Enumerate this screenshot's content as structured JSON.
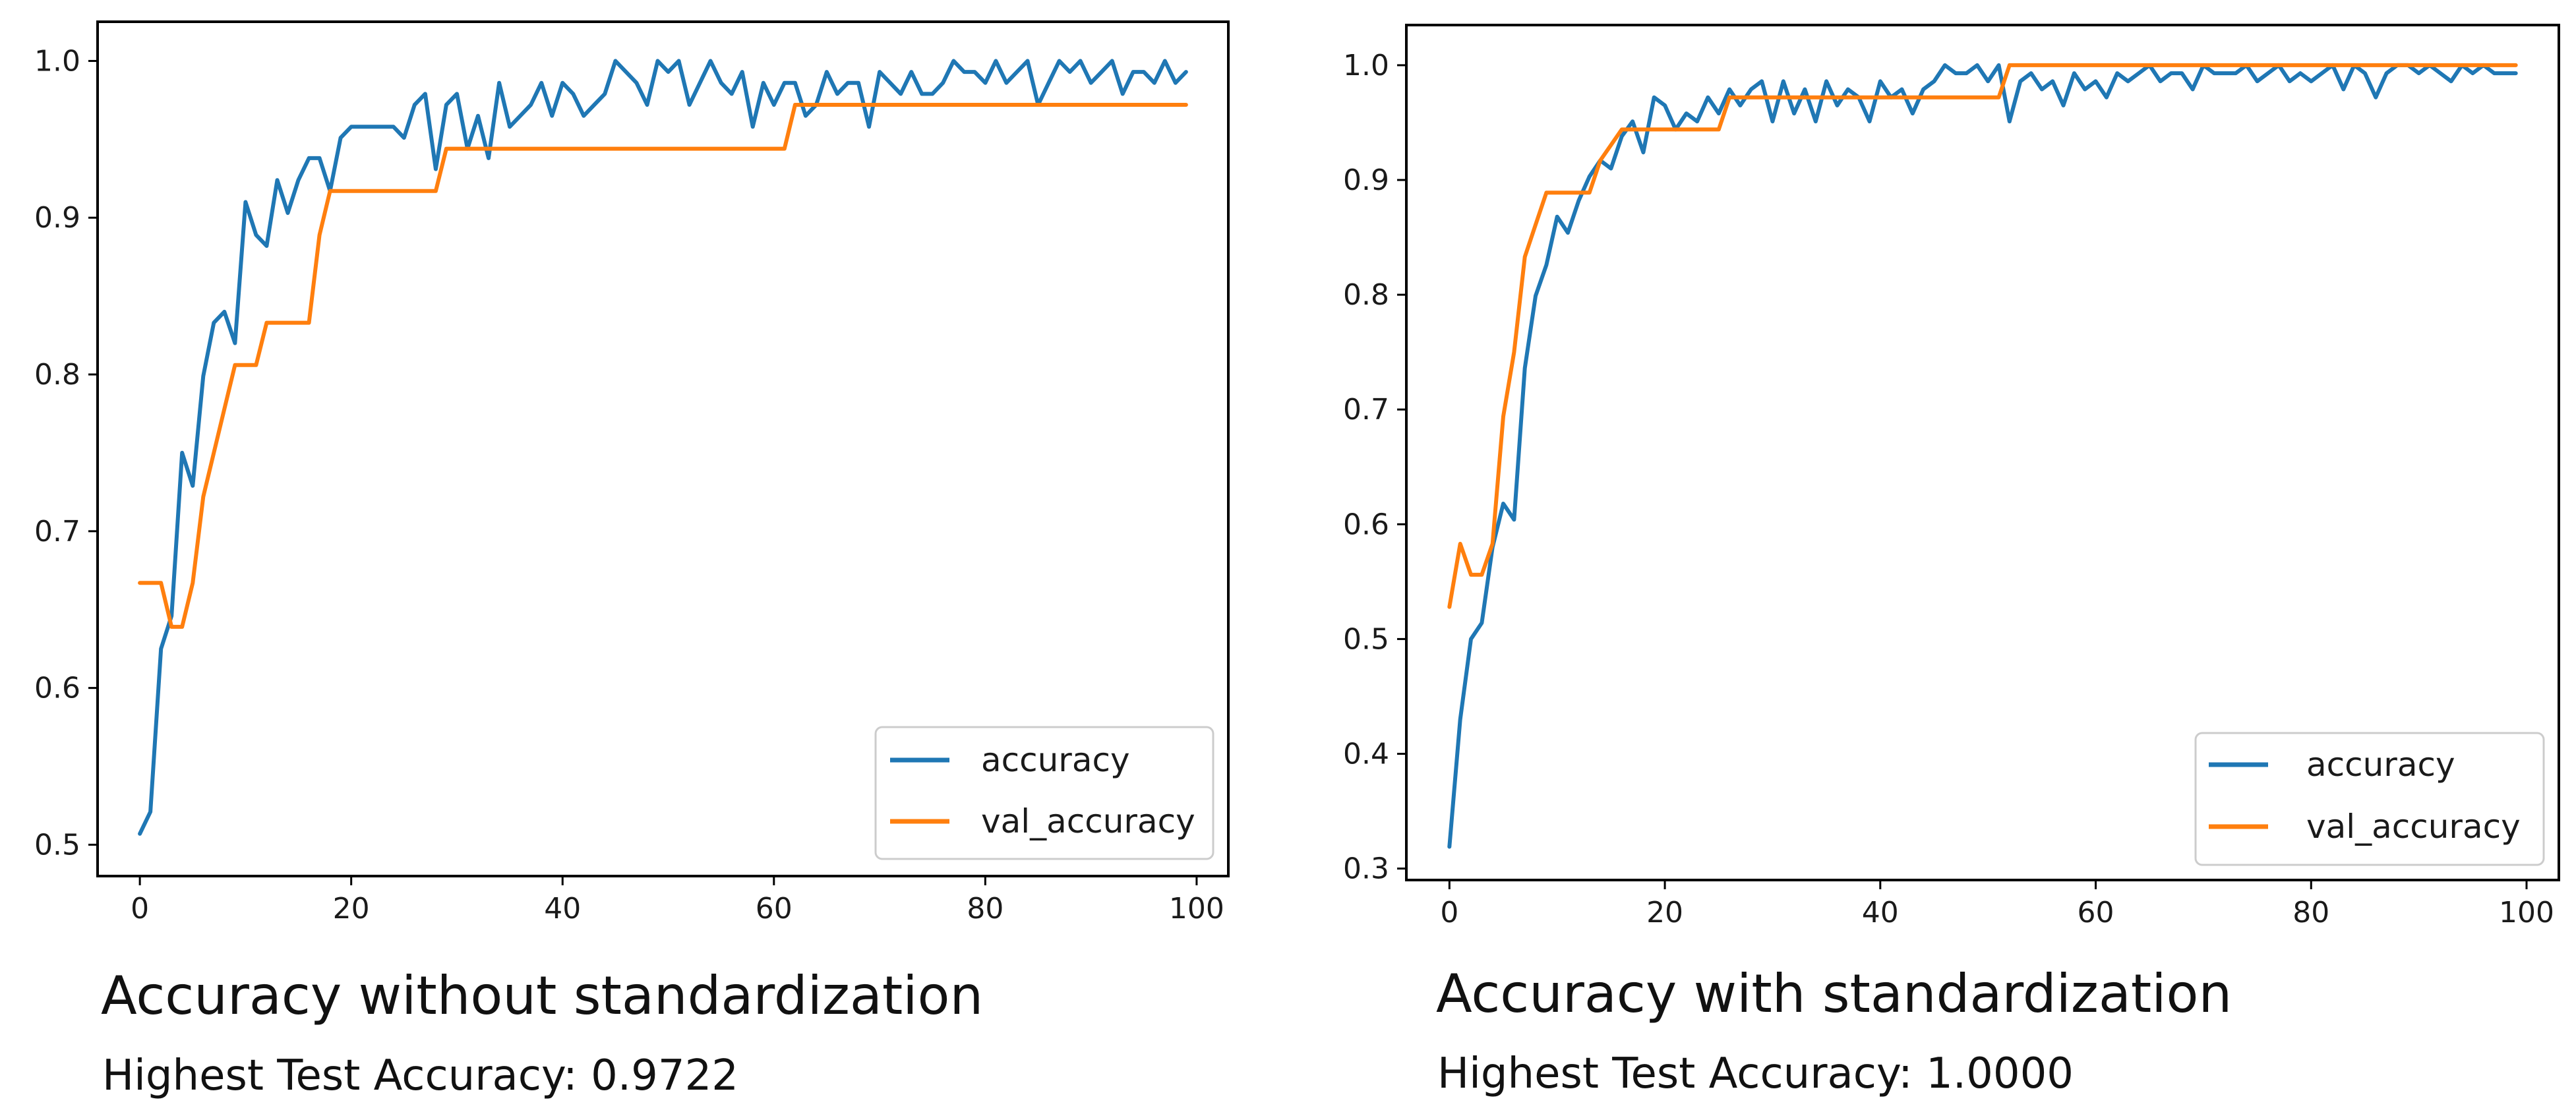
{
  "colors": {
    "accuracy": "#1f77b4",
    "val_accuracy": "#ff7f0e",
    "axes": "#000000",
    "legend_border": "#cccccc"
  },
  "panels": [
    {
      "caption": "Accuracy without standardization",
      "subcaption": "Highest Test Accuracy: 0.9722"
    },
    {
      "caption": "Accuracy with standardization",
      "subcaption": "Highest Test Accuracy: 1.0000"
    }
  ],
  "chart_data": [
    {
      "type": "line",
      "title": "Accuracy without standardization",
      "xlabel": "",
      "ylabel": "",
      "xlim": [
        -4,
        103
      ],
      "ylim": [
        0.48,
        1.025
      ],
      "xticks": [
        0,
        20,
        40,
        60,
        80,
        100
      ],
      "yticks": [
        0.5,
        0.6,
        0.7,
        0.8,
        0.9,
        1.0
      ],
      "ytick_labels": [
        "0.5",
        "0.6",
        "0.7",
        "0.8",
        "0.9",
        "1.0"
      ],
      "grid": false,
      "legend": "lower-right",
      "series": [
        {
          "name": "accuracy",
          "points": [
            [
              0,
              0.507
            ],
            [
              1,
              0.521
            ],
            [
              2,
              0.625
            ],
            [
              3,
              0.646
            ],
            [
              4,
              0.75
            ],
            [
              5,
              0.729
            ],
            [
              6,
              0.799
            ],
            [
              7,
              0.833
            ],
            [
              8,
              0.84
            ],
            [
              9,
              0.82
            ],
            [
              10,
              0.91
            ],
            [
              11,
              0.889
            ],
            [
              12,
              0.882
            ],
            [
              13,
              0.924
            ],
            [
              14,
              0.903
            ],
            [
              15,
              0.924
            ],
            [
              16,
              0.938
            ],
            [
              17,
              0.938
            ],
            [
              18,
              0.917
            ],
            [
              19,
              0.951
            ],
            [
              20,
              0.958
            ],
            [
              22,
              0.958
            ],
            [
              24,
              0.958
            ],
            [
              25,
              0.951
            ],
            [
              26,
              0.972
            ],
            [
              27,
              0.979
            ],
            [
              28,
              0.931
            ],
            [
              29,
              0.972
            ],
            [
              30,
              0.979
            ],
            [
              31,
              0.944
            ],
            [
              32,
              0.965
            ],
            [
              33,
              0.938
            ],
            [
              34,
              0.986
            ],
            [
              35,
              0.958
            ],
            [
              36,
              0.965
            ],
            [
              37,
              0.972
            ],
            [
              38,
              0.986
            ],
            [
              39,
              0.965
            ],
            [
              40,
              0.986
            ],
            [
              41,
              0.979
            ],
            [
              42,
              0.965
            ],
            [
              43,
              0.972
            ],
            [
              44,
              0.979
            ],
            [
              45,
              1.0
            ],
            [
              46,
              0.993
            ],
            [
              47,
              0.986
            ],
            [
              48,
              0.972
            ],
            [
              49,
              1.0
            ],
            [
              50,
              0.993
            ],
            [
              51,
              1.0
            ],
            [
              52,
              0.972
            ],
            [
              53,
              0.986
            ],
            [
              54,
              1.0
            ],
            [
              55,
              0.986
            ],
            [
              56,
              0.979
            ],
            [
              57,
              0.993
            ],
            [
              58,
              0.958
            ],
            [
              59,
              0.986
            ],
            [
              60,
              0.972
            ],
            [
              61,
              0.986
            ],
            [
              62,
              0.986
            ],
            [
              63,
              0.965
            ],
            [
              64,
              0.972
            ],
            [
              65,
              0.993
            ],
            [
              66,
              0.979
            ],
            [
              67,
              0.986
            ],
            [
              68,
              0.986
            ],
            [
              69,
              0.958
            ],
            [
              70,
              0.993
            ],
            [
              71,
              0.986
            ],
            [
              72,
              0.979
            ],
            [
              73,
              0.993
            ],
            [
              74,
              0.979
            ],
            [
              75,
              0.979
            ],
            [
              76,
              0.986
            ],
            [
              77,
              1.0
            ],
            [
              78,
              0.993
            ],
            [
              79,
              0.993
            ],
            [
              80,
              0.986
            ],
            [
              81,
              1.0
            ],
            [
              82,
              0.986
            ],
            [
              83,
              0.993
            ],
            [
              84,
              1.0
            ],
            [
              85,
              0.972
            ],
            [
              86,
              0.986
            ],
            [
              87,
              1.0
            ],
            [
              88,
              0.993
            ],
            [
              89,
              1.0
            ],
            [
              90,
              0.986
            ],
            [
              91,
              0.993
            ],
            [
              92,
              1.0
            ],
            [
              93,
              0.979
            ],
            [
              94,
              0.993
            ],
            [
              95,
              0.993
            ],
            [
              96,
              0.986
            ],
            [
              97,
              1.0
            ],
            [
              98,
              0.986
            ],
            [
              99,
              0.993
            ]
          ]
        },
        {
          "name": "val_accuracy",
          "points": [
            [
              0,
              0.667
            ],
            [
              2,
              0.667
            ],
            [
              3,
              0.639
            ],
            [
              4,
              0.639
            ],
            [
              5,
              0.667
            ],
            [
              6,
              0.722
            ],
            [
              7,
              0.75
            ],
            [
              8,
              0.778
            ],
            [
              9,
              0.806
            ],
            [
              11,
              0.806
            ],
            [
              12,
              0.833
            ],
            [
              16,
              0.833
            ],
            [
              17,
              0.889
            ],
            [
              18,
              0.917
            ],
            [
              28,
              0.917
            ],
            [
              29,
              0.944
            ],
            [
              61,
              0.944
            ],
            [
              62,
              0.972
            ],
            [
              99,
              0.972
            ]
          ]
        }
      ]
    },
    {
      "type": "line",
      "title": "Accuracy with standardization",
      "xlabel": "",
      "ylabel": "",
      "xlim": [
        -4,
        103
      ],
      "ylim": [
        0.29,
        1.035
      ],
      "xticks": [
        0,
        20,
        40,
        60,
        80,
        100
      ],
      "yticks": [
        0.3,
        0.4,
        0.5,
        0.6,
        0.7,
        0.8,
        0.9,
        1.0
      ],
      "ytick_labels": [
        "0.3",
        "0.4",
        "0.5",
        "0.6",
        "0.7",
        "0.8",
        "0.9",
        "1.0"
      ],
      "grid": false,
      "legend": "lower-right",
      "series": [
        {
          "name": "accuracy",
          "points": [
            [
              0,
              0.319
            ],
            [
              1,
              0.43
            ],
            [
              2,
              0.5
            ],
            [
              3,
              0.514
            ],
            [
              4,
              0.58
            ],
            [
              5,
              0.618
            ],
            [
              6,
              0.604
            ],
            [
              7,
              0.736
            ],
            [
              8,
              0.799
            ],
            [
              9,
              0.826
            ],
            [
              10,
              0.868
            ],
            [
              11,
              0.854
            ],
            [
              12,
              0.882
            ],
            [
              13,
              0.903
            ],
            [
              14,
              0.917
            ],
            [
              15,
              0.91
            ],
            [
              16,
              0.938
            ],
            [
              17,
              0.951
            ],
            [
              18,
              0.924
            ],
            [
              19,
              0.972
            ],
            [
              20,
              0.965
            ],
            [
              21,
              0.944
            ],
            [
              22,
              0.958
            ],
            [
              23,
              0.951
            ],
            [
              24,
              0.972
            ],
            [
              25,
              0.958
            ],
            [
              26,
              0.979
            ],
            [
              27,
              0.965
            ],
            [
              28,
              0.979
            ],
            [
              29,
              0.986
            ],
            [
              30,
              0.951
            ],
            [
              31,
              0.986
            ],
            [
              32,
              0.958
            ],
            [
              33,
              0.979
            ],
            [
              34,
              0.951
            ],
            [
              35,
              0.986
            ],
            [
              36,
              0.965
            ],
            [
              37,
              0.979
            ],
            [
              38,
              0.972
            ],
            [
              39,
              0.951
            ],
            [
              40,
              0.986
            ],
            [
              41,
              0.972
            ],
            [
              42,
              0.979
            ],
            [
              43,
              0.958
            ],
            [
              44,
              0.979
            ],
            [
              45,
              0.986
            ],
            [
              46,
              1.0
            ],
            [
              47,
              0.993
            ],
            [
              48,
              0.993
            ],
            [
              49,
              1.0
            ],
            [
              50,
              0.986
            ],
            [
              51,
              1.0
            ],
            [
              52,
              0.951
            ],
            [
              53,
              0.986
            ],
            [
              54,
              0.993
            ],
            [
              55,
              0.979
            ],
            [
              56,
              0.986
            ],
            [
              57,
              0.965
            ],
            [
              58,
              0.993
            ],
            [
              59,
              0.979
            ],
            [
              60,
              0.986
            ],
            [
              61,
              0.972
            ],
            [
              62,
              0.993
            ],
            [
              63,
              0.986
            ],
            [
              64,
              0.993
            ],
            [
              65,
              1.0
            ],
            [
              66,
              0.986
            ],
            [
              67,
              0.993
            ],
            [
              68,
              0.993
            ],
            [
              69,
              0.979
            ],
            [
              70,
              1.0
            ],
            [
              71,
              0.993
            ],
            [
              72,
              0.993
            ],
            [
              73,
              0.993
            ],
            [
              74,
              1.0
            ],
            [
              75,
              0.986
            ],
            [
              76,
              0.993
            ],
            [
              77,
              1.0
            ],
            [
              78,
              0.986
            ],
            [
              79,
              0.993
            ],
            [
              80,
              0.986
            ],
            [
              81,
              0.993
            ],
            [
              82,
              1.0
            ],
            [
              83,
              0.979
            ],
            [
              84,
              1.0
            ],
            [
              85,
              0.993
            ],
            [
              86,
              0.972
            ],
            [
              87,
              0.993
            ],
            [
              88,
              1.0
            ],
            [
              89,
              1.0
            ],
            [
              90,
              0.993
            ],
            [
              91,
              1.0
            ],
            [
              92,
              0.993
            ],
            [
              93,
              0.986
            ],
            [
              94,
              1.0
            ],
            [
              95,
              0.993
            ],
            [
              96,
              1.0
            ],
            [
              97,
              0.993
            ],
            [
              98,
              0.993
            ],
            [
              99,
              0.993
            ]
          ]
        },
        {
          "name": "val_accuracy",
          "points": [
            [
              0,
              0.528
            ],
            [
              1,
              0.583
            ],
            [
              2,
              0.556
            ],
            [
              3,
              0.556
            ],
            [
              4,
              0.583
            ],
            [
              5,
              0.694
            ],
            [
              6,
              0.75
            ],
            [
              7,
              0.833
            ],
            [
              8,
              0.861
            ],
            [
              9,
              0.889
            ],
            [
              13,
              0.889
            ],
            [
              14,
              0.917
            ],
            [
              16,
              0.944
            ],
            [
              25,
              0.944
            ],
            [
              26,
              0.972
            ],
            [
              51,
              0.972
            ],
            [
              52,
              1.0
            ],
            [
              99,
              1.0
            ]
          ]
        }
      ]
    }
  ]
}
